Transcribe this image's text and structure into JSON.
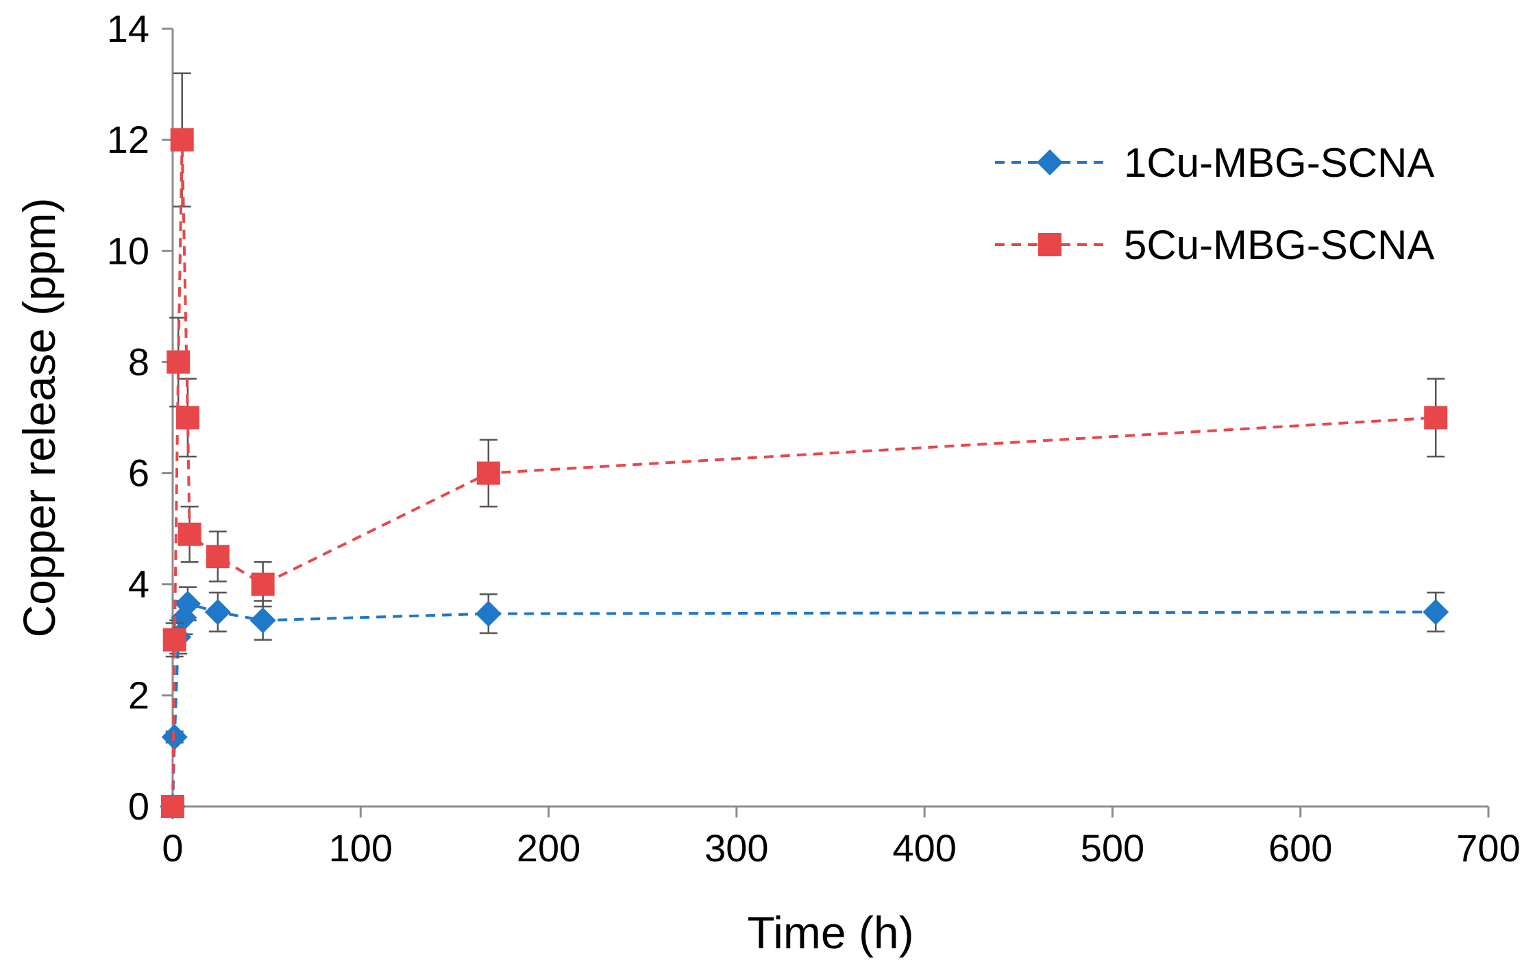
{
  "chart_data": {
    "type": "line",
    "title": "",
    "xlabel": "Time (h)",
    "ylabel": "Copper release (ppm)",
    "xlim": [
      0,
      700
    ],
    "ylim": [
      0,
      14
    ],
    "xticks": [
      0,
      100,
      200,
      300,
      400,
      500,
      600,
      700
    ],
    "yticks": [
      0,
      2,
      4,
      6,
      8,
      10,
      12,
      14
    ],
    "xtick_labels": [
      "0",
      "100",
      "200",
      "300",
      "400",
      "500",
      "600",
      "700"
    ],
    "ytick_labels": [
      "0",
      "2",
      "4",
      "6",
      "8",
      "10",
      "12",
      "14"
    ],
    "grid": false,
    "legend_position": "top-right",
    "series": [
      {
        "name": "1Cu-MBG-SCNA",
        "color": "#1f78c8",
        "marker": "diamond",
        "line_style": "dashed",
        "x": [
          0,
          1,
          3,
          6,
          8,
          24,
          48,
          168,
          672
        ],
        "y": [
          0,
          1.25,
          3.05,
          3.4,
          3.65,
          3.5,
          3.35,
          3.47,
          3.5
        ],
        "error": [
          0,
          0.1,
          0.3,
          0.3,
          0.3,
          0.35,
          0.35,
          0.35,
          0.35
        ]
      },
      {
        "name": "5Cu-MBG-SCNA",
        "color": "#e8474a",
        "marker": "square",
        "line_style": "dashed",
        "x": [
          0,
          1,
          3,
          5,
          8,
          9,
          24,
          48,
          168,
          672
        ],
        "y": [
          0,
          3.0,
          8.0,
          12.0,
          7.0,
          4.9,
          4.5,
          4.0,
          6.0,
          7.0
        ],
        "error": [
          0,
          0.3,
          0.8,
          1.2,
          0.7,
          0.5,
          0.45,
          0.4,
          0.6,
          0.7
        ]
      }
    ]
  }
}
